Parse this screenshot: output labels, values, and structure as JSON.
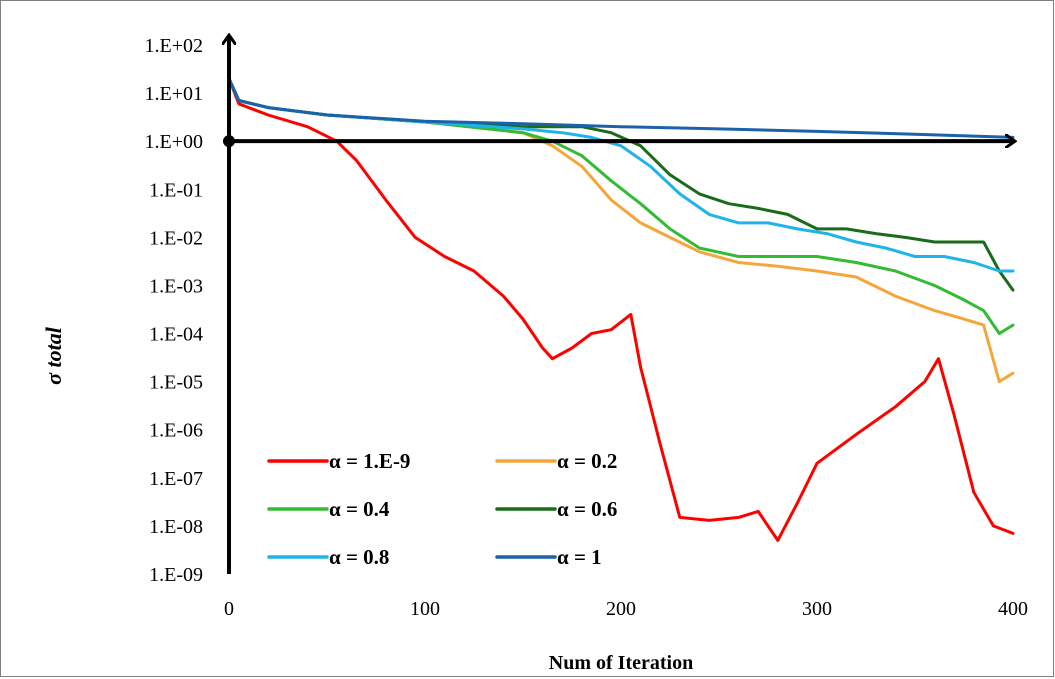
{
  "chart_data": {
    "type": "line",
    "title": "",
    "xlabel": "Num of Iteration",
    "ylabel": "σ total",
    "xlim": [
      0,
      400
    ],
    "ylim_log10": [
      -9,
      2
    ],
    "y_scale": "log",
    "grid": false,
    "legend_position": "bottom-left",
    "x_ticks": [
      0,
      100,
      200,
      300,
      400
    ],
    "y_ticks": [
      "1.E+02",
      "1.E+01",
      "1.E+00",
      "1.E-01",
      "1.E-02",
      "1.E-03",
      "1.E-04",
      "1.E-05",
      "1.E-06",
      "1.E-07",
      "1.E-08",
      "1.E-09"
    ],
    "series": [
      {
        "name": "α = 1.E-9",
        "color": "#ff0000",
        "x": [
          0,
          5,
          20,
          40,
          55,
          65,
          80,
          95,
          110,
          125,
          140,
          150,
          160,
          165,
          175,
          185,
          195,
          205,
          210,
          220,
          230,
          245,
          260,
          270,
          280,
          290,
          300,
          320,
          340,
          355,
          362,
          370,
          380,
          390,
          400
        ],
        "y": [
          20,
          6,
          3.5,
          2,
          1,
          0.4,
          0.06,
          0.01,
          0.004,
          0.002,
          0.0006,
          0.0002,
          5e-05,
          3e-05,
          5e-05,
          0.0001,
          0.00012,
          0.00025,
          2e-05,
          5e-07,
          1.5e-08,
          1.3e-08,
          1.5e-08,
          2e-08,
          5e-09,
          3e-08,
          2e-07,
          8e-07,
          3e-06,
          1e-05,
          3e-05,
          2e-06,
          5e-08,
          1e-08,
          7e-09
        ]
      },
      {
        "name": "α = 0.2",
        "color": "#f4a63a",
        "x": [
          0,
          5,
          20,
          50,
          100,
          150,
          165,
          180,
          195,
          210,
          225,
          240,
          260,
          280,
          300,
          320,
          340,
          360,
          375,
          385,
          393,
          400
        ],
        "y": [
          20,
          7,
          5,
          3.5,
          2.5,
          1.5,
          0.8,
          0.3,
          0.06,
          0.02,
          0.01,
          0.005,
          0.003,
          0.0025,
          0.002,
          0.0015,
          0.0006,
          0.0003,
          0.0002,
          0.00015,
          1e-05,
          1.5e-05
        ]
      },
      {
        "name": "α = 0.4",
        "color": "#33bb33",
        "x": [
          0,
          5,
          20,
          50,
          100,
          150,
          165,
          180,
          195,
          210,
          225,
          240,
          260,
          280,
          300,
          320,
          340,
          360,
          375,
          385,
          393,
          400
        ],
        "y": [
          20,
          7,
          5,
          3.5,
          2.5,
          1.5,
          1,
          0.5,
          0.15,
          0.05,
          0.015,
          0.006,
          0.004,
          0.004,
          0.004,
          0.003,
          0.002,
          0.001,
          0.0005,
          0.0003,
          0.0001,
          0.00015
        ]
      },
      {
        "name": "α = 0.6",
        "color": "#1a6b1a",
        "x": [
          0,
          5,
          20,
          50,
          100,
          150,
          180,
          195,
          210,
          225,
          240,
          255,
          270,
          285,
          300,
          315,
          330,
          345,
          360,
          375,
          385,
          393,
          400
        ],
        "y": [
          20,
          7,
          5,
          3.5,
          2.5,
          2,
          2,
          1.5,
          0.8,
          0.2,
          0.08,
          0.05,
          0.04,
          0.03,
          0.015,
          0.015,
          0.012,
          0.01,
          0.008,
          0.008,
          0.008,
          0.002,
          0.0008
        ]
      },
      {
        "name": "α = 0.8",
        "color": "#1fb4e8",
        "x": [
          0,
          5,
          20,
          50,
          100,
          150,
          170,
          185,
          200,
          215,
          230,
          245,
          260,
          275,
          290,
          305,
          320,
          335,
          350,
          365,
          380,
          393,
          400
        ],
        "y": [
          20,
          7,
          5,
          3.5,
          2.5,
          1.8,
          1.5,
          1.2,
          0.8,
          0.3,
          0.08,
          0.03,
          0.02,
          0.02,
          0.015,
          0.012,
          0.008,
          0.006,
          0.004,
          0.004,
          0.003,
          0.002,
          0.002
        ]
      },
      {
        "name": "α = 1",
        "color": "#1b62a8",
        "x": [
          0,
          5,
          20,
          50,
          100,
          150,
          200,
          250,
          300,
          350,
          400
        ],
        "y": [
          20,
          7,
          5,
          3.5,
          2.6,
          2.3,
          2,
          1.8,
          1.6,
          1.4,
          1.2
        ]
      }
    ]
  }
}
